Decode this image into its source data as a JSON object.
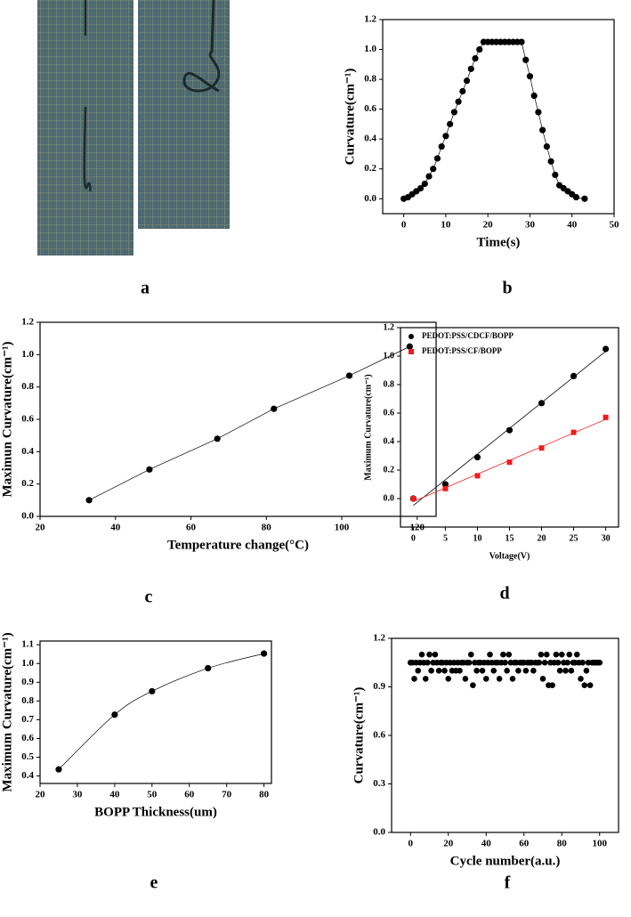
{
  "photo_panel": {
    "label": "a"
  },
  "chart_data": [
    {
      "type": "scatter",
      "label": "b",
      "x_label": "Time(s)",
      "y_label": "Curvature(cm⁻¹)",
      "color": "#000000",
      "connect": "line",
      "marker": "circle",
      "x": [
        0,
        1,
        2,
        3,
        4,
        5,
        6,
        7,
        8,
        9,
        10,
        11,
        12,
        13,
        14,
        15,
        16,
        17,
        18,
        19,
        20,
        21,
        22,
        23,
        24,
        25,
        26,
        27,
        28,
        29,
        30,
        31,
        32,
        33,
        34,
        35,
        36,
        37,
        38,
        39,
        40,
        41,
        43
      ],
      "values": [
        0,
        0.01,
        0.03,
        0.05,
        0.07,
        0.1,
        0.15,
        0.2,
        0.27,
        0.35,
        0.42,
        0.5,
        0.58,
        0.65,
        0.72,
        0.79,
        0.87,
        0.94,
        1.0,
        1.05,
        1.05,
        1.05,
        1.05,
        1.05,
        1.05,
        1.05,
        1.05,
        1.05,
        1.05,
        0.93,
        0.82,
        0.69,
        0.58,
        0.46,
        0.35,
        0.25,
        0.16,
        0.09,
        0.07,
        0.05,
        0.03,
        0.01,
        0
      ],
      "xlim": [
        -5,
        50
      ],
      "ylim": [
        -0.1,
        1.2
      ],
      "xticks": [
        0,
        10,
        20,
        30,
        40,
        50
      ],
      "yticks": [
        {
          "value": 0,
          "label": "0.0"
        },
        0.2,
        0.4,
        0.6,
        0.8,
        {
          "value": 1,
          "label": "1.0"
        },
        1.2
      ]
    },
    {
      "type": "scatter",
      "label": "c",
      "x_label": "Temperature change(°C)",
      "y_label": "Maximun Curvature(cm⁻¹)",
      "color": "#000000",
      "connect": "line",
      "marker": "circle",
      "x": [
        33,
        49,
        67,
        82,
        102,
        118
      ],
      "values": [
        0.1,
        0.29,
        0.48,
        0.665,
        0.87,
        1.05
      ],
      "xlim": [
        20,
        125
      ],
      "ylim": [
        0,
        1.2
      ],
      "xticks": [
        20,
        40,
        60,
        80,
        100,
        120
      ],
      "yticks": [
        {
          "value": 0,
          "label": "0.0"
        },
        0.2,
        0.4,
        0.6,
        0.8,
        {
          "value": 1,
          "label": "1.0"
        },
        1.2
      ]
    },
    {
      "type": "scatter",
      "label": "d",
      "x_label": "Voltage(V)",
      "y_label": "Maximum Curvature(cm⁻¹)",
      "connect": "linear-fit",
      "legend": "upper-left",
      "x": [
        0,
        5,
        10,
        15,
        20,
        25,
        30
      ],
      "series": [
        {
          "name": "PEDOT:PSS/CDCF/BOPP",
          "color": "#000000",
          "marker": "circle",
          "values": [
            0,
            0.1,
            0.29,
            0.48,
            0.67,
            0.86,
            1.05
          ]
        },
        {
          "name": "PEDOT:PSS/CF/BOPP",
          "color": "#ee1c1c",
          "marker": "square",
          "values": [
            0,
            0.07,
            0.16,
            0.255,
            0.355,
            0.465,
            0.57
          ]
        }
      ],
      "xlim": [
        -2,
        32
      ],
      "ylim": [
        -0.2,
        1.2
      ],
      "xticks": [
        0,
        5,
        10,
        15,
        20,
        25,
        30
      ],
      "yticks": [
        {
          "value": 0,
          "label": "0.0"
        },
        0.2,
        0.4,
        0.6,
        0.8,
        {
          "value": 1,
          "label": "1.0"
        },
        1.2
      ]
    },
    {
      "type": "scatter",
      "label": "e",
      "x_label": "BOPP Thickness(um)",
      "y_label": "Maximum Curvature(cm⁻¹)",
      "color": "#000000",
      "connect": "smooth",
      "marker": "circle",
      "x": [
        25,
        40,
        50,
        65,
        80
      ],
      "values": [
        0.435,
        0.727,
        0.852,
        0.975,
        1.053
      ],
      "xlim": [
        20,
        82
      ],
      "ylim": [
        0.36,
        1.12
      ],
      "xticks": [
        20,
        30,
        40,
        50,
        60,
        70,
        80
      ],
      "yticks": [
        0.4,
        0.5,
        0.6,
        0.7,
        0.8,
        0.9,
        {
          "value": 1,
          "label": "1.0"
        },
        1.1
      ]
    },
    {
      "type": "scatter",
      "label": "f",
      "x_label": "Cycle number(a.u.)",
      "y_label": "Curvature(cm⁻¹)",
      "color": "#000000",
      "marker": "circle",
      "x": [
        0,
        1,
        2,
        3,
        4,
        5,
        6,
        7,
        8,
        9,
        10,
        11,
        12,
        13,
        14,
        15,
        16,
        17,
        18,
        19,
        20,
        21,
        22,
        23,
        24,
        25,
        26,
        27,
        28,
        29,
        30,
        31,
        32,
        33,
        34,
        35,
        36,
        37,
        38,
        39,
        40,
        41,
        42,
        43,
        44,
        45,
        46,
        47,
        48,
        49,
        50,
        51,
        52,
        53,
        54,
        55,
        56,
        57,
        58,
        59,
        60,
        61,
        62,
        63,
        64,
        65,
        66,
        67,
        68,
        69,
        70,
        71,
        72,
        73,
        74,
        75,
        76,
        77,
        78,
        79,
        80,
        81,
        82,
        83,
        84,
        85,
        86,
        87,
        88,
        89,
        90,
        91,
        92,
        93,
        94,
        95,
        96,
        97,
        98,
        99,
        100
      ],
      "values": [
        1.05,
        1.05,
        0.95,
        1.05,
        1.0,
        1.05,
        1.1,
        1.05,
        0.95,
        1.05,
        1.1,
        1.0,
        1.05,
        1.1,
        1.05,
        1.0,
        1.05,
        1.05,
        1.0,
        1.05,
        0.95,
        1.05,
        1.0,
        1.05,
        1.0,
        1.05,
        1.0,
        1.05,
        1.05,
        0.95,
        1.05,
        1.05,
        1.1,
        0.91,
        1.05,
        1.0,
        1.05,
        1.05,
        1.0,
        1.05,
        0.95,
        1.05,
        1.1,
        1.05,
        1.0,
        1.05,
        1.05,
        0.95,
        1.05,
        1.1,
        1.05,
        1.0,
        1.1,
        1.05,
        0.95,
        1.05,
        1.05,
        1.0,
        1.05,
        1.05,
        1.05,
        1.0,
        1.05,
        1.05,
        1.05,
        1.0,
        1.05,
        1.05,
        1.05,
        1.1,
        0.95,
        1.05,
        1.1,
        0.91,
        1.05,
        0.91,
        1.05,
        1.1,
        1.05,
        1.0,
        1.1,
        1.05,
        1.0,
        1.05,
        1.1,
        1.0,
        1.05,
        1.05,
        1.1,
        1.05,
        0.95,
        1.05,
        0.91,
        1.0,
        1.05,
        0.91,
        1.05,
        1.05,
        1.05,
        1.05,
        1.05
      ],
      "xlim": [
        -10,
        110
      ],
      "ylim": [
        0,
        1.2
      ],
      "xticks": [
        0,
        20,
        40,
        60,
        80,
        100
      ],
      "yticks": [
        {
          "value": 0,
          "label": "0.0"
        },
        0.3,
        0.6,
        0.9,
        1.2
      ]
    }
  ]
}
